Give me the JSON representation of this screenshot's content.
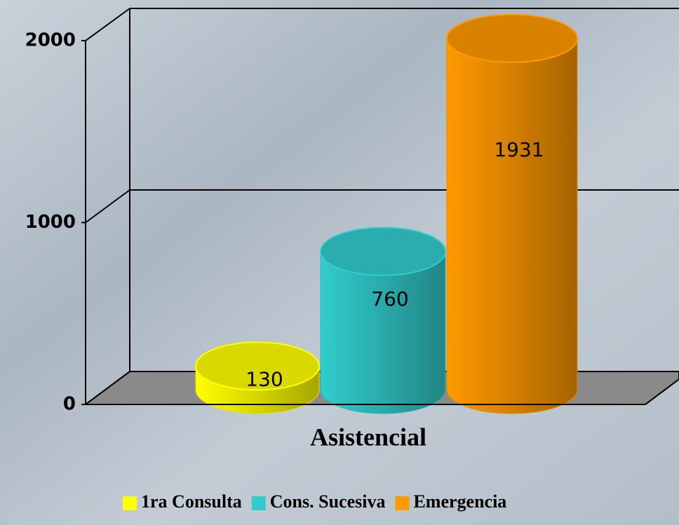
{
  "chart_data": {
    "type": "bar",
    "categories": [
      "Asistencial"
    ],
    "series": [
      {
        "name": "1ra Consulta",
        "color": "#ffff00",
        "values": [
          130
        ]
      },
      {
        "name": "Cons. Sucesiva",
        "color": "#33cccc",
        "values": [
          760
        ]
      },
      {
        "name": "Emergencia",
        "color": "#ff9900",
        "values": [
          1931
        ]
      }
    ],
    "ylim": [
      0,
      2000
    ],
    "yticks": [
      0,
      1000,
      2000
    ],
    "grid": true,
    "legend": "bottom"
  }
}
